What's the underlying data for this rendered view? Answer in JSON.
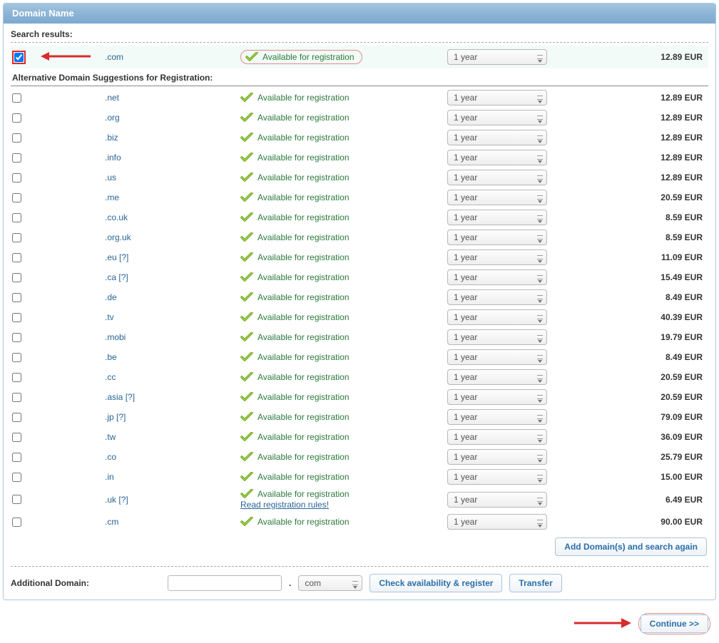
{
  "panel": {
    "title": "Domain Name"
  },
  "labels": {
    "search_results": "Search results:",
    "alt_suggestions": "Alternative Domain Suggestions for Registration:",
    "additional_domain": "Additional Domain:",
    "read_registration_rules": "Read registration rules!"
  },
  "status": {
    "available": "Available for registration"
  },
  "duration": {
    "default": "1 year"
  },
  "buttons": {
    "add_search_again": "Add Domain(s) and search again",
    "check_register": "Check availability & register",
    "transfer": "Transfer",
    "continue": "Continue >>"
  },
  "additional": {
    "tld_default": "com"
  },
  "primary": {
    "tld": ".com",
    "price": "12.89 EUR",
    "checked": true
  },
  "alternatives": [
    {
      "tld": ".net",
      "price": "12.89 EUR"
    },
    {
      "tld": ".org",
      "price": "12.89 EUR"
    },
    {
      "tld": ".biz",
      "price": "12.89 EUR"
    },
    {
      "tld": ".info",
      "price": "12.89 EUR"
    },
    {
      "tld": ".us",
      "price": "12.89 EUR"
    },
    {
      "tld": ".me",
      "price": "20.59 EUR"
    },
    {
      "tld": ".co.uk",
      "price": "8.59 EUR"
    },
    {
      "tld": ".org.uk",
      "price": "8.59 EUR"
    },
    {
      "tld": ".eu",
      "help": true,
      "price": "11.09 EUR"
    },
    {
      "tld": ".ca",
      "help": true,
      "price": "15.49 EUR"
    },
    {
      "tld": ".de",
      "price": "8.49 EUR"
    },
    {
      "tld": ".tv",
      "price": "40.39 EUR"
    },
    {
      "tld": ".mobi",
      "price": "19.79 EUR"
    },
    {
      "tld": ".be",
      "price": "8.49 EUR"
    },
    {
      "tld": ".cc",
      "price": "20.59 EUR"
    },
    {
      "tld": ".asia",
      "help": true,
      "price": "20.59 EUR"
    },
    {
      "tld": ".jp",
      "help": true,
      "price": "79.09 EUR"
    },
    {
      "tld": ".tw",
      "price": "36.09 EUR"
    },
    {
      "tld": ".co",
      "price": "25.79 EUR"
    },
    {
      "tld": ".in",
      "price": "15.00 EUR"
    },
    {
      "tld": ".uk",
      "help": true,
      "rules": true,
      "price": "6.49 EUR"
    },
    {
      "tld": ".cm",
      "price": "90.00 EUR"
    }
  ],
  "colors": {
    "panel_border": "#a9c6dd",
    "header_grad_top": "#a4c5e0",
    "header_grad_bot": "#7eaad0",
    "link": "#2a6496",
    "status_green": "#2b7a3b",
    "pill_border": "#e08b8b",
    "red": "#d92b2b",
    "btn_text": "#2a6ea8"
  }
}
